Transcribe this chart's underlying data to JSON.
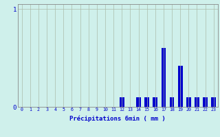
{
  "title": "",
  "xlabel": "Précipitations 6min ( mm )",
  "ylabel": "",
  "background_color": "#cff0eb",
  "bar_color": "#0000cc",
  "grid_color": "#aabbaa",
  "axis_color": "#888888",
  "text_color": "#0000cc",
  "xlim": [
    -0.5,
    23.5
  ],
  "ylim": [
    0,
    1.05
  ],
  "yticks": [
    0,
    1
  ],
  "xticks": [
    0,
    1,
    2,
    3,
    4,
    5,
    6,
    7,
    8,
    9,
    10,
    11,
    12,
    13,
    14,
    15,
    16,
    17,
    18,
    19,
    20,
    21,
    22,
    23
  ],
  "hours": [
    0,
    1,
    2,
    3,
    4,
    5,
    6,
    7,
    8,
    9,
    10,
    11,
    12,
    13,
    14,
    15,
    16,
    17,
    18,
    19,
    20,
    21,
    22,
    23
  ],
  "values": [
    0,
    0,
    0,
    0,
    0,
    0,
    0,
    0,
    0,
    0,
    0,
    0,
    0.1,
    0.0,
    0.1,
    0.1,
    0.1,
    0.6,
    0.1,
    0.42,
    0.1,
    0.1,
    0.1,
    0.1
  ],
  "bar_width": 0.55
}
